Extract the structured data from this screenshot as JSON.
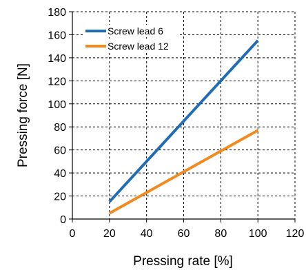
{
  "chart_data": {
    "type": "line",
    "title": "",
    "xlabel": "Pressing rate [%]",
    "ylabel": "Pressing force [N]",
    "xlim": [
      0,
      120
    ],
    "ylim": [
      0,
      180
    ],
    "xticks": [
      0,
      20,
      40,
      60,
      80,
      100,
      120
    ],
    "yticks": [
      0,
      20,
      40,
      60,
      80,
      100,
      120,
      140,
      160,
      180
    ],
    "grid": true,
    "grid_style": "dashed",
    "legend_position": "top-left",
    "series": [
      {
        "name": "Screw lead 6",
        "color": "#1f6db4",
        "x": [
          20,
          100
        ],
        "y": [
          15,
          155
        ]
      },
      {
        "name": "Screw lead 12",
        "color": "#f28a1e",
        "x": [
          20,
          100
        ],
        "y": [
          5,
          77
        ]
      }
    ]
  }
}
